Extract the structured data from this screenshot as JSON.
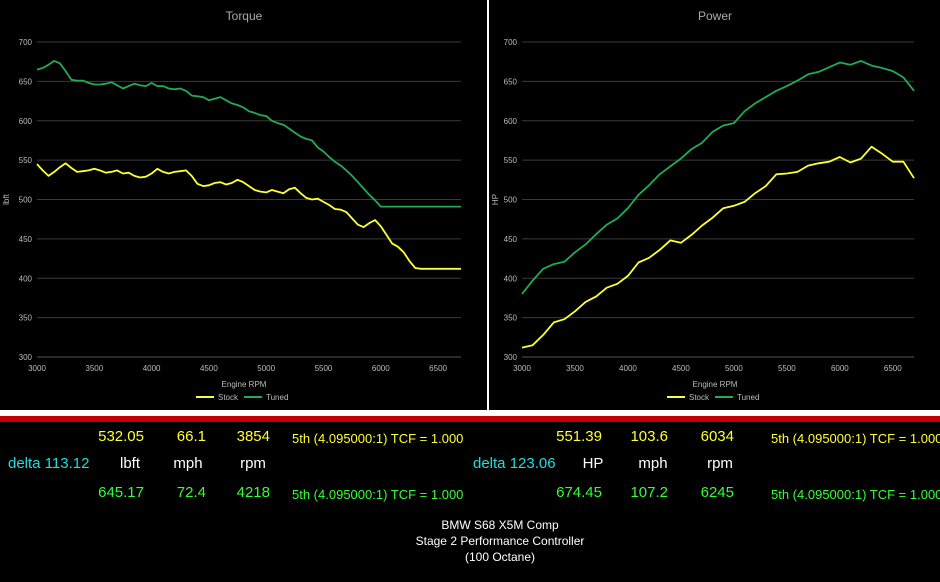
{
  "charts": [
    {
      "title": "Torque",
      "xlabel": "Engine RPM",
      "ylabel": "lbft",
      "type": "line"
    },
    {
      "title": "Power",
      "xlabel": "Engine RPM",
      "ylabel": "HP",
      "type": "line"
    }
  ],
  "chart_data": [
    {
      "type": "line",
      "title": "Torque",
      "xlabel": "Engine RPM",
      "ylabel": "lbft",
      "xlim": [
        3000,
        6700
      ],
      "ylim": [
        300,
        700
      ],
      "xticks": [
        3000,
        3500,
        4000,
        4500,
        5000,
        5500,
        6000,
        6500
      ],
      "yticks": [
        300,
        350,
        400,
        450,
        500,
        550,
        600,
        650,
        700
      ],
      "grid": true,
      "legend": "bottom",
      "series": [
        {
          "name": "Stock",
          "color": "#ffff33",
          "x": [
            3000,
            3050,
            3100,
            3150,
            3200,
            3250,
            3300,
            3350,
            3400,
            3450,
            3500,
            3550,
            3600,
            3650,
            3700,
            3750,
            3800,
            3850,
            3900,
            3950,
            4000,
            4050,
            4100,
            4150,
            4200,
            4250,
            4300,
            4350,
            4400,
            4450,
            4500,
            4550,
            4600,
            4650,
            4700,
            4750,
            4800,
            4850,
            4900,
            4950,
            5000,
            5050,
            5100,
            5150,
            5200,
            5250,
            5300,
            5350,
            5400,
            5450,
            5500,
            5550,
            5600,
            5650,
            5700,
            5750,
            5800,
            5850,
            5900,
            5950,
            6000,
            6050,
            6100,
            6150,
            6200,
            6250,
            6300,
            6350,
            6400,
            6450,
            6500,
            6550,
            6600,
            6650,
            6700
          ],
          "y": [
            545,
            537,
            530,
            535,
            541,
            546,
            540,
            535,
            536,
            537,
            539,
            537,
            534,
            535,
            537,
            533,
            534,
            530,
            528,
            529,
            533,
            539,
            535,
            533,
            535,
            536,
            537,
            530,
            520,
            517,
            518,
            521,
            522,
            519,
            521,
            525,
            522,
            517,
            512,
            510,
            509,
            512,
            510,
            508,
            513,
            515,
            508,
            502,
            500,
            501,
            497,
            493,
            488,
            487,
            484,
            476,
            468,
            465,
            470,
            474,
            466,
            455,
            444,
            440,
            433,
            422,
            413,
            412,
            412,
            412,
            412,
            412,
            412,
            412,
            412
          ]
        },
        {
          "name": "Tuned",
          "color": "#22aa55",
          "x": [
            3000,
            3050,
            3100,
            3150,
            3200,
            3250,
            3300,
            3350,
            3400,
            3450,
            3500,
            3550,
            3600,
            3650,
            3700,
            3750,
            3800,
            3850,
            3900,
            3950,
            4000,
            4050,
            4100,
            4150,
            4200,
            4250,
            4300,
            4350,
            4400,
            4450,
            4500,
            4550,
            4600,
            4650,
            4700,
            4750,
            4800,
            4850,
            4900,
            4950,
            5000,
            5050,
            5100,
            5150,
            5200,
            5250,
            5300,
            5350,
            5400,
            5450,
            5500,
            5550,
            5600,
            5650,
            5700,
            5750,
            5800,
            5850,
            5900,
            5950,
            6000,
            6050,
            6100,
            6150,
            6200,
            6250,
            6300,
            6350,
            6400,
            6450,
            6500,
            6550,
            6600,
            6650,
            6700
          ],
          "y": [
            665,
            667,
            671,
            676,
            673,
            663,
            652,
            651,
            651,
            648,
            646,
            646,
            647,
            649,
            645,
            641,
            644,
            647,
            645,
            644,
            648,
            644,
            644,
            641,
            640,
            641,
            638,
            632,
            631,
            630,
            626,
            628,
            630,
            626,
            622,
            620,
            617,
            612,
            610,
            607,
            606,
            600,
            597,
            595,
            590,
            585,
            580,
            577,
            575,
            566,
            561,
            554,
            548,
            543,
            537,
            530,
            522,
            514,
            506,
            499,
            491,
            491,
            491,
            491,
            491,
            491,
            491,
            491,
            491,
            491,
            491,
            491,
            491,
            491,
            491
          ]
        }
      ]
    },
    {
      "type": "line",
      "title": "Power",
      "xlabel": "Engine RPM",
      "ylabel": "HP",
      "xlim": [
        3000,
        6700
      ],
      "ylim": [
        300,
        700
      ],
      "xticks": [
        3000,
        3500,
        4000,
        4500,
        5000,
        5500,
        6000,
        6500
      ],
      "yticks": [
        300,
        350,
        400,
        450,
        500,
        550,
        600,
        650,
        700
      ],
      "grid": true,
      "legend": "bottom",
      "series": [
        {
          "name": "Stock",
          "color": "#ffff33",
          "x": [
            3000,
            3100,
            3200,
            3300,
            3400,
            3500,
            3600,
            3700,
            3800,
            3900,
            4000,
            4100,
            4200,
            4300,
            4400,
            4500,
            4600,
            4700,
            4800,
            4900,
            5000,
            5100,
            5200,
            5300,
            5400,
            5500,
            5600,
            5700,
            5800,
            5900,
            6000,
            6100,
            6200,
            6300,
            6400,
            6500,
            6600,
            6700
          ],
          "y": [
            312,
            315,
            328,
            344,
            348,
            358,
            370,
            377,
            388,
            393,
            403,
            420,
            426,
            436,
            448,
            445,
            455,
            467,
            477,
            489,
            492,
            497,
            508,
            517,
            532,
            533,
            535,
            543,
            546,
            548,
            554,
            547,
            552,
            567,
            558,
            548,
            548,
            527
          ]
        },
        {
          "name": "Tuned",
          "color": "#22aa55",
          "x": [
            3000,
            3100,
            3200,
            3300,
            3400,
            3500,
            3600,
            3700,
            3800,
            3900,
            4000,
            4100,
            4200,
            4300,
            4400,
            4500,
            4600,
            4700,
            4800,
            4900,
            5000,
            5100,
            5200,
            5300,
            5400,
            5500,
            5600,
            5700,
            5800,
            5900,
            6000,
            6100,
            6200,
            6300,
            6400,
            6500,
            6600,
            6700
          ],
          "y": [
            380,
            397,
            412,
            418,
            421,
            433,
            443,
            456,
            468,
            476,
            489,
            506,
            518,
            532,
            542,
            552,
            564,
            572,
            586,
            594,
            597,
            612,
            622,
            630,
            638,
            644,
            651,
            659,
            662,
            668,
            674,
            671,
            676,
            670,
            667,
            663,
            655,
            638
          ]
        }
      ]
    }
  ],
  "readouts": {
    "left": {
      "stock": [
        "532.05",
        "66.1",
        "3854"
      ],
      "stock_gear": "5th (4.095000:1) TCF = 1.000",
      "delta_label": "delta 113.12",
      "units": [
        "lbft",
        "mph",
        "rpm"
      ],
      "tuned": [
        "645.17",
        "72.4",
        "4218"
      ],
      "tuned_gear": "5th (4.095000:1) TCF = 1.000"
    },
    "right": {
      "stock": [
        "551.39",
        "103.6",
        "6034"
      ],
      "stock_gear": "5th (4.095000:1) TCF = 1.000",
      "delta_label": "delta 123.06",
      "units": [
        "HP",
        "mph",
        "rpm"
      ],
      "tuned": [
        "674.45",
        "107.2",
        "6245"
      ],
      "tuned_gear": "5th (4.095000:1) TCF = 1.000"
    }
  },
  "caption": [
    "BMW S68 X5M Comp",
    "Stage 2 Performance Controller",
    "(100 Octane)"
  ],
  "colors": {
    "background": "#000000",
    "stock": "#ffff33",
    "tuned": "#22aa55",
    "readout_stock": "#ffff33",
    "readout_tuned": "#33ff33",
    "delta": "#22dddd",
    "separator": "#c00000"
  }
}
